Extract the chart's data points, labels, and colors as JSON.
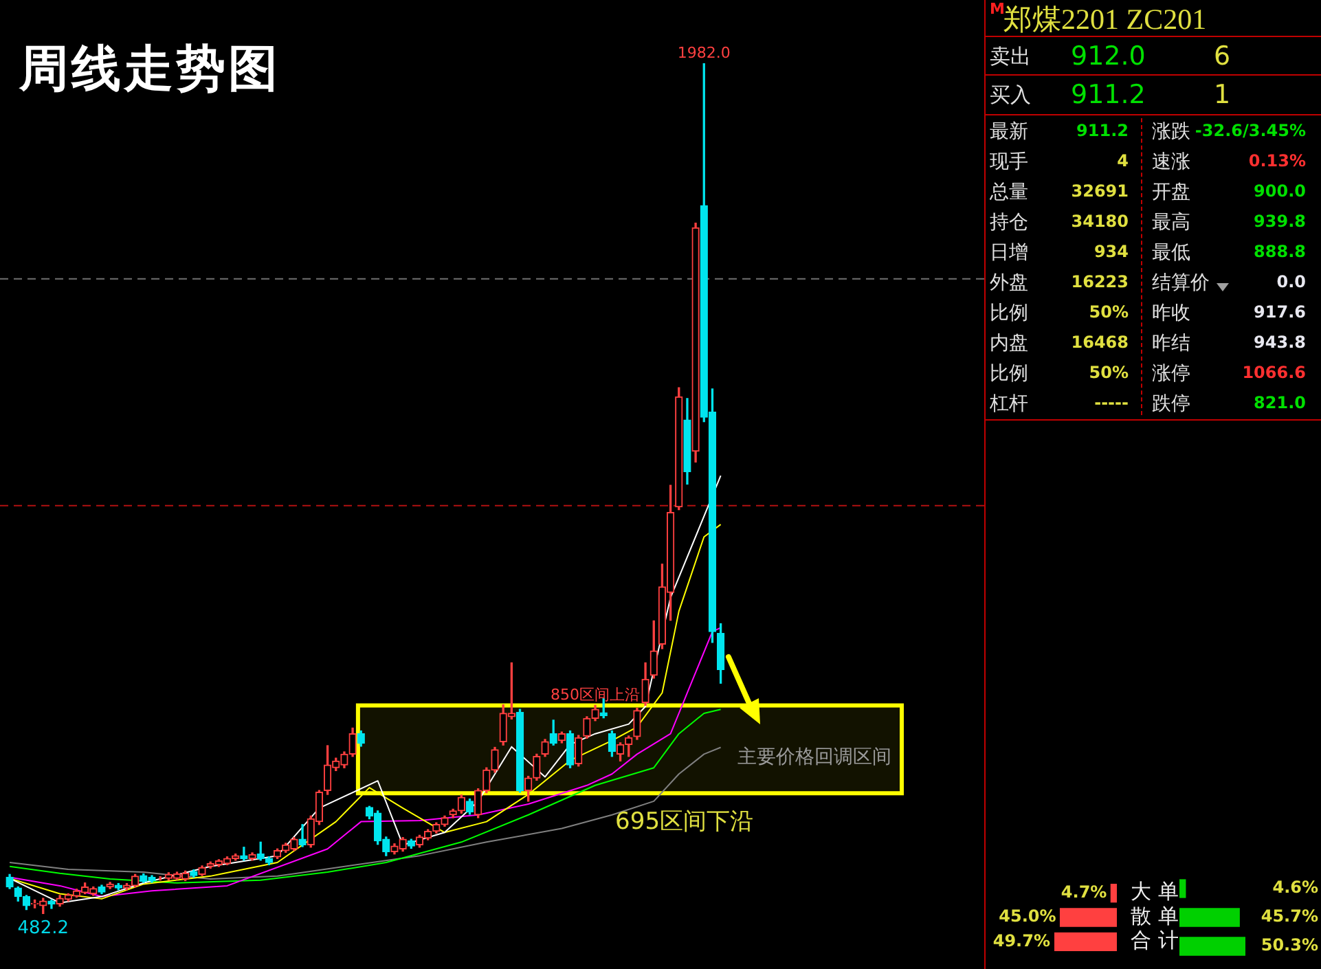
{
  "chart_data": [
    {
      "type": "candlestick",
      "title": "周线走势图",
      "categories": [
        null,
        null,
        null,
        null,
        null,
        null,
        null,
        null,
        null,
        null,
        null,
        null,
        null,
        null,
        null,
        null,
        null,
        null,
        null,
        null,
        null,
        null,
        null,
        null,
        null,
        null,
        null,
        null,
        null,
        null,
        null,
        null,
        null,
        null,
        null,
        null,
        null,
        null,
        null,
        null,
        null,
        null,
        null,
        null,
        null,
        null,
        null,
        null,
        null,
        null,
        null,
        null,
        null,
        null,
        null,
        null,
        null,
        null,
        null,
        null,
        null,
        null,
        null,
        null,
        null,
        null,
        null,
        null,
        null,
        null,
        null,
        null,
        null,
        null,
        null,
        null,
        null,
        null,
        null,
        null,
        null,
        null,
        null,
        null,
        null,
        null
      ],
      "ohlc": [
        [
          547,
          552,
          527,
          530
        ],
        [
          528,
          530,
          505,
          513
        ],
        [
          513,
          515,
          490,
          497
        ],
        [
          500,
          507,
          493,
          501
        ],
        [
          497,
          510,
          482.2,
          505
        ],
        [
          505,
          507,
          492,
          500
        ],
        [
          500,
          515,
          496,
          510
        ],
        [
          508,
          518,
          505,
          516
        ],
        [
          514,
          526,
          512,
          523
        ],
        [
          520,
          537,
          518,
          530
        ],
        [
          518,
          530,
          515,
          527
        ],
        [
          530,
          533,
          518,
          521
        ],
        [
          530,
          538,
          527,
          535
        ],
        [
          533,
          536,
          525,
          528
        ],
        [
          528,
          536,
          525,
          533
        ],
        [
          532,
          552,
          530,
          549
        ],
        [
          550,
          553,
          538,
          540
        ],
        [
          547,
          550,
          538,
          541
        ],
        [
          545,
          548,
          542,
          545
        ],
        [
          545,
          555,
          542,
          552
        ],
        [
          545,
          556,
          543,
          553
        ],
        [
          544,
          558,
          541,
          554
        ],
        [
          557,
          560,
          547,
          550
        ],
        [
          552,
          567,
          550,
          564
        ],
        [
          566,
          574,
          563,
          571
        ],
        [
          569,
          578,
          566,
          576
        ],
        [
          571,
          583,
          569,
          580
        ],
        [
          580,
          588,
          577,
          585
        ],
        [
          585,
          600,
          577,
          580
        ],
        [
          580,
          590,
          577,
          587
        ],
        [
          588,
          609,
          577,
          580
        ],
        [
          580,
          583,
          569,
          573
        ],
        [
          583,
          597,
          580,
          594
        ],
        [
          594,
          607,
          591,
          604
        ],
        [
          597,
          617,
          594,
          614
        ],
        [
          614,
          640,
          601,
          604
        ],
        [
          604,
          655,
          600,
          650
        ],
        [
          645,
          700,
          640,
          697
        ],
        [
          700,
          779,
          693,
          745
        ],
        [
          740,
          757,
          735,
          752
        ],
        [
          745,
          768,
          740,
          764
        ],
        [
          764,
          810,
          760,
          800
        ],
        [
          800,
          805,
          778,
          783
        ],
        [
          670,
          672,
          650,
          655
        ],
        [
          660,
          664,
          605,
          611
        ],
        [
          614,
          618,
          585,
          592
        ],
        [
          592,
          606,
          588,
          602
        ],
        [
          597,
          617,
          593,
          614
        ],
        [
          611,
          614,
          598,
          602
        ],
        [
          604,
          621,
          600,
          618
        ],
        [
          616,
          631,
          613,
          628
        ],
        [
          628,
          643,
          625,
          640
        ],
        [
          640,
          655,
          637,
          652
        ],
        [
          657,
          667,
          652,
          664
        ],
        [
          664,
          692,
          660,
          688
        ],
        [
          681,
          685,
          658,
          662
        ],
        [
          657,
          703,
          652,
          700
        ],
        [
          700,
          740,
          696,
          736
        ],
        [
          736,
          776,
          732,
          772
        ],
        [
          786,
          851,
          780,
          836
        ],
        [
          830,
          925,
          826,
          836
        ],
        [
          838,
          843,
          697,
          700
        ],
        [
          700,
          725,
          681,
          722
        ],
        [
          722,
          764,
          718,
          760
        ],
        [
          764,
          790,
          760,
          786
        ],
        [
          800,
          824,
          780,
          783
        ],
        [
          788,
          803,
          784,
          800
        ],
        [
          800,
          805,
          740,
          745
        ],
        [
          747,
          797,
          743,
          793
        ],
        [
          796,
          830,
          792,
          827
        ],
        [
          827,
          850,
          823,
          843
        ],
        [
          837,
          862,
          828,
          832
        ],
        [
          800,
          805,
          760,
          769
        ],
        [
          764,
          784,
          752,
          781
        ],
        [
          781,
          796,
          760,
          793
        ],
        [
          795,
          845,
          790,
          841
        ],
        [
          855,
          925,
          850,
          896
        ],
        [
          903,
          999,
          898,
          946
        ],
        [
          958,
          1099,
          950,
          1059
        ],
        [
          1049,
          1238,
          1000,
          1190
        ],
        [
          1200,
          1410,
          1195,
          1394
        ],
        [
          1353,
          1391,
          1240,
          1262
        ],
        [
          1298,
          1700,
          1279,
          1692
        ],
        [
          1731,
          1982,
          1350,
          1358
        ],
        [
          1367,
          1408,
          961,
          980
        ],
        [
          977,
          994,
          889,
          913
        ]
      ],
      "series": [
        {
          "type": "line",
          "color": "#ffffff",
          "values": [
            545,
            null,
            null,
            null,
            null,
            null,
            502,
            null,
            null,
            null,
            null,
            513,
            null,
            null,
            null,
            null,
            537,
            null,
            null,
            null,
            null,
            null,
            null,
            null,
            566,
            null,
            null,
            null,
            null,
            null,
            null,
            null,
            585,
            null,
            null,
            null,
            null,
            669,
            null,
            null,
            null,
            null,
            null,
            null,
            717,
            null,
            null,
            604,
            null,
            null,
            null,
            null,
            626,
            null,
            null,
            null,
            681,
            null,
            null,
            null,
            777,
            null,
            null,
            null,
            724,
            null,
            null,
            781,
            null,
            null,
            800,
            null,
            null,
            null,
            817,
            null,
            848,
            null,
            null,
            1040,
            null,
            null,
            null,
            null,
            null,
            1255
          ]
        },
        {
          "type": "line",
          "color": "#ffff00",
          "values": [
            545,
            null,
            null,
            null,
            null,
            null,
            518,
            null,
            null,
            null,
            null,
            509,
            null,
            null,
            null,
            null,
            535,
            null,
            null,
            null,
            null,
            null,
            null,
            null,
            549,
            null,
            null,
            null,
            null,
            null,
            null,
            null,
            573,
            null,
            null,
            null,
            null,
            null,
            null,
            645,
            null,
            null,
            null,
            705,
            null,
            null,
            null,
            669,
            null,
            null,
            null,
            null,
            626,
            null,
            null,
            null,
            null,
            645,
            null,
            null,
            null,
            null,
            693,
            null,
            null,
            null,
            null,
            753,
            null,
            null,
            null,
            null,
            788,
            null,
            null,
            812,
            null,
            null,
            872,
            null,
            1016,
            null,
            null,
            1147,
            null,
            1169
          ]
        },
        {
          "type": "line",
          "color": "#ff00ff",
          "values": [
            547,
            null,
            null,
            null,
            null,
            null,
            532,
            null,
            null,
            null,
            null,
            513,
            null,
            null,
            null,
            null,
            null,
            523,
            null,
            null,
            null,
            null,
            null,
            null,
            null,
            null,
            532,
            null,
            null,
            null,
            null,
            null,
            null,
            null,
            null,
            null,
            null,
            null,
            597,
            null,
            null,
            null,
            645,
            null,
            null,
            null,
            null,
            null,
            null,
            647,
            null,
            null,
            null,
            null,
            null,
            null,
            657,
            null,
            null,
            null,
            null,
            null,
            676,
            null,
            null,
            null,
            null,
            null,
            null,
            709,
            null,
            null,
            729,
            null,
            null,
            764,
            null,
            null,
            null,
            800,
            null,
            872,
            null,
            null,
            980,
            987
          ]
        },
        {
          "type": "line",
          "color": "#00ff00",
          "values": [
            566,
            null,
            null,
            null,
            null,
            null,
            554,
            null,
            null,
            null,
            null,
            null,
            544,
            null,
            null,
            null,
            null,
            null,
            null,
            null,
            537,
            null,
            null,
            null,
            null,
            null,
            null,
            null,
            null,
            null,
            542,
            null,
            null,
            null,
            null,
            null,
            null,
            null,
            556,
            null,
            null,
            null,
            null,
            null,
            null,
            573,
            null,
            null,
            null,
            null,
            null,
            null,
            null,
            null,
            609,
            null,
            null,
            null,
            null,
            null,
            null,
            null,
            657,
            null,
            null,
            null,
            null,
            null,
            null,
            null,
            709,
            null,
            null,
            null,
            null,
            null,
            null,
            740,
            null,
            null,
            800,
            null,
            null,
            836,
            null,
            843
          ]
        },
        {
          "type": "line",
          "color": "#808080",
          "values": [
            573,
            null,
            null,
            null,
            null,
            null,
            null,
            561,
            null,
            null,
            null,
            null,
            null,
            null,
            null,
            null,
            556,
            null,
            null,
            null,
            null,
            null,
            null,
            null,
            544,
            null,
            null,
            null,
            null,
            null,
            null,
            null,
            549,
            null,
            null,
            null,
            null,
            null,
            null,
            null,
            null,
            null,
            null,
            null,
            null,
            null,
            null,
            null,
            null,
            585,
            null,
            null,
            null,
            null,
            null,
            null,
            null,
            609,
            null,
            null,
            null,
            null,
            null,
            null,
            null,
            null,
            633,
            null,
            null,
            null,
            null,
            null,
            657,
            null,
            null,
            null,
            null,
            681,
            null,
            null,
            729,
            null,
            null,
            764,
            null,
            776
          ]
        }
      ],
      "ref_lines": [
        {
          "axis": "y",
          "value": 1602,
          "color": "#707070",
          "line_style": "dashed"
        },
        {
          "axis": "y",
          "value": 1202,
          "color": "#b01010",
          "line_style": "dashed"
        }
      ],
      "bands": [
        {
          "axis": "y",
          "from": 695,
          "to": 850,
          "label": "主要价格回调区间",
          "color": "#ffff00"
        }
      ],
      "annotations": [
        {
          "text": "1982.0",
          "y": 1982
        },
        {
          "text": "482.2",
          "y": 482.2
        },
        {
          "text": "850区间上沿",
          "y": 850
        },
        "695区间下沿"
      ]
    },
    {
      "type": "other",
      "title": "郑煤2201  ZC201",
      "annotations": [
        "M",
        "卖出",
        "912.0",
        "6",
        "买入",
        "911.2",
        "1",
        "最新",
        "911.2",
        "涨跌",
        "-32.6/3.45%",
        "现手",
        "4",
        "速涨",
        "0.13%",
        "总量",
        "32691",
        "开盘",
        "900.0",
        "持仓",
        "34180",
        "最高",
        "939.8",
        "日增",
        "934",
        "最低",
        "888.8",
        "外盘",
        "16223",
        "结算价",
        "0.0",
        "比例",
        "50%",
        "昨收",
        "917.6",
        "内盘",
        "16468",
        "昨结",
        "943.8",
        "比例",
        "50%",
        "涨停",
        "1066.6",
        "杠杆",
        "-----",
        "跌停",
        "821.0"
      ]
    },
    {
      "type": "bar",
      "orientation": "horizontal",
      "categories": [
        "大单",
        "散单",
        "合计"
      ],
      "color": "#ff4040",
      "values": [
        4.7,
        45.0,
        49.7
      ],
      "value_labels": [
        "4.7%",
        "45.0%",
        "49.7%"
      ]
    },
    {
      "type": "bar",
      "orientation": "horizontal",
      "categories": [
        null,
        null,
        null
      ],
      "color": "#00d000",
      "values": [
        4.6,
        45.7,
        50.3
      ],
      "value_labels": [
        "4.6%",
        "45.7%",
        "50.3%"
      ]
    }
  ]
}
